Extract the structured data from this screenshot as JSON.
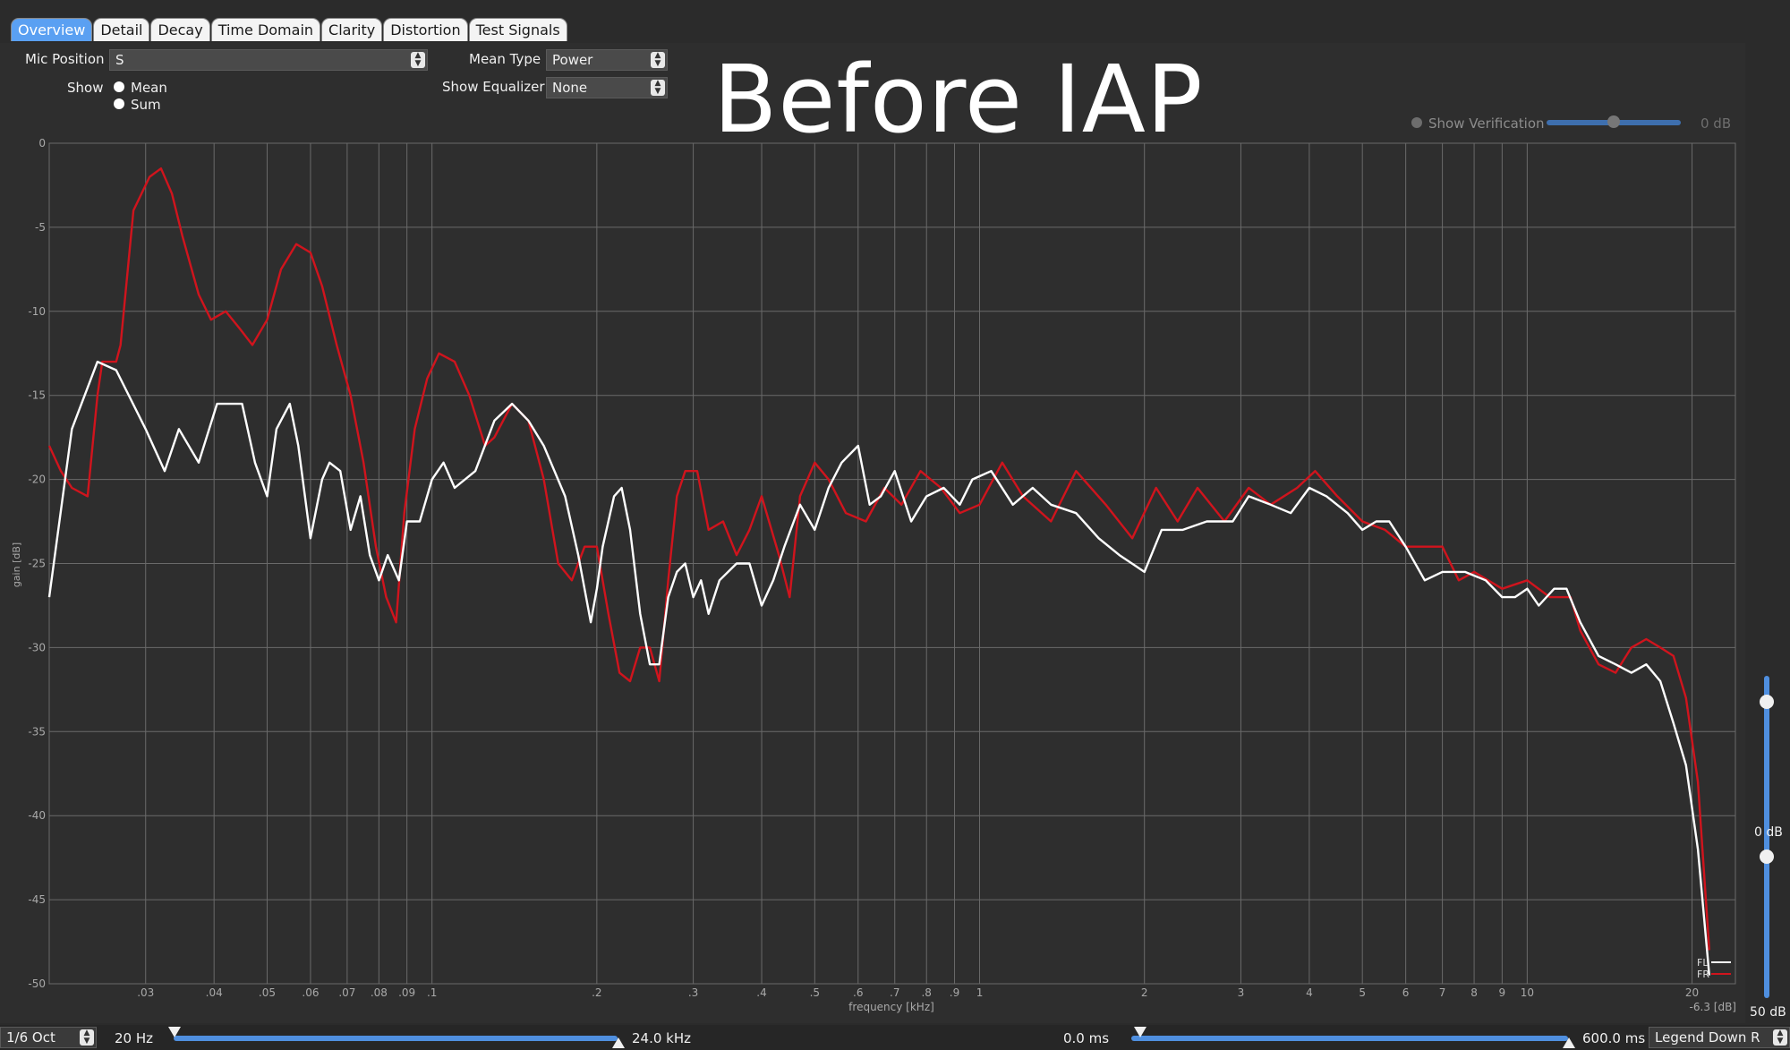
{
  "tabs": [
    {
      "label": "Overview",
      "active": true
    },
    {
      "label": "Detail"
    },
    {
      "label": "Decay"
    },
    {
      "label": "Time Domain"
    },
    {
      "label": "Clarity"
    },
    {
      "label": "Distortion"
    },
    {
      "label": "Test Signals"
    }
  ],
  "controls": {
    "mic_position_label": "Mic Position",
    "mic_position_value": "S",
    "show_label": "Show",
    "show_options": [
      "Mean",
      "Sum"
    ],
    "mean_type_label": "Mean Type",
    "mean_type_value": "Power",
    "show_equalizer_label": "Show Equalizer",
    "show_equalizer_value": "None",
    "show_verification_label": "Show Verification",
    "verification_value": "0 dB"
  },
  "overlay_title": "Before IAP",
  "bottom_bar": {
    "smoothing": "1/6 Oct",
    "freq_min": "20 Hz",
    "freq_max": "24.0 kHz",
    "time_min": "0.0 ms",
    "time_max": "600.0 ms",
    "legend": "Legend Down R"
  },
  "side": {
    "top_db": "0 dB",
    "bottom_db": "50 dB"
  },
  "colors": {
    "accent": "#4f8fdf",
    "series_fl": "#ffffff",
    "series_fr": "#d0141d",
    "grid": "#6a6a6a"
  },
  "chart_data": {
    "type": "line",
    "xlabel": "frequency [kHz]",
    "ylabel": "gain [dB]",
    "xscale": "log",
    "xlim": [
      0.02,
      24
    ],
    "ylim": [
      -50,
      0
    ],
    "y_ticks": [
      0,
      -5,
      -10,
      -15,
      -20,
      -25,
      -30,
      -35,
      -40,
      -45,
      -50
    ],
    "x_ticks": [
      {
        "v": 0.03,
        "l": ".03"
      },
      {
        "v": 0.04,
        "l": ".04"
      },
      {
        "v": 0.05,
        "l": ".05"
      },
      {
        "v": 0.06,
        "l": ".06"
      },
      {
        "v": 0.07,
        "l": ".07"
      },
      {
        "v": 0.08,
        "l": ".08"
      },
      {
        "v": 0.09,
        "l": ".09"
      },
      {
        "v": 0.1,
        "l": ".1"
      },
      {
        "v": 0.2,
        "l": ".2"
      },
      {
        "v": 0.3,
        "l": ".3"
      },
      {
        "v": 0.4,
        "l": ".4"
      },
      {
        "v": 0.5,
        "l": ".5"
      },
      {
        "v": 0.6,
        "l": ".6"
      },
      {
        "v": 0.7,
        "l": ".7"
      },
      {
        "v": 0.8,
        "l": ".8"
      },
      {
        "v": 0.9,
        "l": ".9"
      },
      {
        "v": 1,
        "l": "1"
      },
      {
        "v": 2,
        "l": "2"
      },
      {
        "v": 3,
        "l": "3"
      },
      {
        "v": 4,
        "l": "4"
      },
      {
        "v": 5,
        "l": "5"
      },
      {
        "v": 6,
        "l": "6"
      },
      {
        "v": 7,
        "l": "7"
      },
      {
        "v": 8,
        "l": "8"
      },
      {
        "v": 9,
        "l": "9"
      },
      {
        "v": 10,
        "l": "10"
      },
      {
        "v": 20,
        "l": "20"
      }
    ],
    "corner_readout": "-6.3 [dB]",
    "legend_position": "bottom-right",
    "series": [
      {
        "name": "FL",
        "color": "#ffffff",
        "points": [
          [
            0.02,
            -27
          ],
          [
            0.022,
            -17
          ],
          [
            0.0245,
            -13
          ],
          [
            0.0265,
            -13.5
          ],
          [
            0.03,
            -17
          ],
          [
            0.0325,
            -19.5
          ],
          [
            0.0345,
            -17
          ],
          [
            0.0375,
            -19
          ],
          [
            0.0405,
            -15.5
          ],
          [
            0.045,
            -15.5
          ],
          [
            0.0475,
            -19
          ],
          [
            0.05,
            -21
          ],
          [
            0.052,
            -17
          ],
          [
            0.055,
            -15.5
          ],
          [
            0.057,
            -18
          ],
          [
            0.06,
            -23.5
          ],
          [
            0.063,
            -20
          ],
          [
            0.065,
            -19
          ],
          [
            0.068,
            -19.5
          ],
          [
            0.071,
            -23
          ],
          [
            0.074,
            -21
          ],
          [
            0.077,
            -24.5
          ],
          [
            0.08,
            -26
          ],
          [
            0.083,
            -24.5
          ],
          [
            0.087,
            -26
          ],
          [
            0.09,
            -22.5
          ],
          [
            0.095,
            -22.5
          ],
          [
            0.1,
            -20
          ],
          [
            0.105,
            -19
          ],
          [
            0.11,
            -20.5
          ],
          [
            0.12,
            -19.5
          ],
          [
            0.13,
            -16.5
          ],
          [
            0.14,
            -15.5
          ],
          [
            0.15,
            -16.5
          ],
          [
            0.16,
            -18
          ],
          [
            0.175,
            -21
          ],
          [
            0.185,
            -24.5
          ],
          [
            0.195,
            -28.5
          ],
          [
            0.2,
            -26.5
          ],
          [
            0.205,
            -24
          ],
          [
            0.215,
            -21
          ],
          [
            0.222,
            -20.5
          ],
          [
            0.23,
            -23
          ],
          [
            0.24,
            -28
          ],
          [
            0.25,
            -31
          ],
          [
            0.26,
            -31
          ],
          [
            0.27,
            -27
          ],
          [
            0.28,
            -25.5
          ],
          [
            0.29,
            -25
          ],
          [
            0.3,
            -27
          ],
          [
            0.31,
            -26
          ],
          [
            0.32,
            -28
          ],
          [
            0.335,
            -26
          ],
          [
            0.36,
            -25
          ],
          [
            0.38,
            -25
          ],
          [
            0.4,
            -27.5
          ],
          [
            0.42,
            -26
          ],
          [
            0.44,
            -24
          ],
          [
            0.47,
            -21.5
          ],
          [
            0.5,
            -23
          ],
          [
            0.53,
            -20.5
          ],
          [
            0.56,
            -19
          ],
          [
            0.6,
            -18
          ],
          [
            0.63,
            -21.5
          ],
          [
            0.66,
            -21
          ],
          [
            0.7,
            -19.5
          ],
          [
            0.75,
            -22.5
          ],
          [
            0.8,
            -21
          ],
          [
            0.86,
            -20.5
          ],
          [
            0.92,
            -21.5
          ],
          [
            0.97,
            -20
          ],
          [
            1.05,
            -19.5
          ],
          [
            1.15,
            -21.5
          ],
          [
            1.25,
            -20.5
          ],
          [
            1.35,
            -21.5
          ],
          [
            1.5,
            -22
          ],
          [
            1.65,
            -23.5
          ],
          [
            1.8,
            -24.5
          ],
          [
            2.0,
            -25.5
          ],
          [
            2.15,
            -23
          ],
          [
            2.35,
            -23
          ],
          [
            2.6,
            -22.5
          ],
          [
            2.9,
            -22.5
          ],
          [
            3.1,
            -21
          ],
          [
            3.4,
            -21.5
          ],
          [
            3.7,
            -22
          ],
          [
            4.0,
            -20.5
          ],
          [
            4.3,
            -21
          ],
          [
            4.7,
            -22
          ],
          [
            5.0,
            -23
          ],
          [
            5.3,
            -22.5
          ],
          [
            5.6,
            -22.5
          ],
          [
            6.0,
            -24
          ],
          [
            6.5,
            -26
          ],
          [
            7.0,
            -25.5
          ],
          [
            7.7,
            -25.5
          ],
          [
            8.4,
            -26
          ],
          [
            9.0,
            -27
          ],
          [
            9.5,
            -27
          ],
          [
            10,
            -26.5
          ],
          [
            10.5,
            -27.5
          ],
          [
            11.2,
            -26.5
          ],
          [
            11.8,
            -26.5
          ],
          [
            12.5,
            -28.5
          ],
          [
            13.5,
            -30.5
          ],
          [
            14.5,
            -31
          ],
          [
            15.5,
            -31.5
          ],
          [
            16.5,
            -31
          ],
          [
            17.5,
            -32
          ],
          [
            18.5,
            -34.5
          ],
          [
            19.5,
            -37
          ],
          [
            20.5,
            -42
          ],
          [
            21.5,
            -49.5
          ]
        ]
      },
      {
        "name": "FR",
        "color": "#d0141d",
        "points": [
          [
            0.02,
            -18
          ],
          [
            0.021,
            -19.5
          ],
          [
            0.022,
            -20.5
          ],
          [
            0.0235,
            -21
          ],
          [
            0.0245,
            -15
          ],
          [
            0.025,
            -13
          ],
          [
            0.0265,
            -13
          ],
          [
            0.027,
            -12
          ],
          [
            0.0285,
            -4
          ],
          [
            0.0305,
            -2
          ],
          [
            0.032,
            -1.5
          ],
          [
            0.0335,
            -3
          ],
          [
            0.035,
            -5.5
          ],
          [
            0.0375,
            -9
          ],
          [
            0.0395,
            -10.5
          ],
          [
            0.042,
            -10
          ],
          [
            0.0445,
            -11
          ],
          [
            0.047,
            -12
          ],
          [
            0.05,
            -10.5
          ],
          [
            0.053,
            -7.5
          ],
          [
            0.0565,
            -6
          ],
          [
            0.06,
            -6.5
          ],
          [
            0.063,
            -8.5
          ],
          [
            0.067,
            -12
          ],
          [
            0.071,
            -15
          ],
          [
            0.075,
            -19
          ],
          [
            0.079,
            -24
          ],
          [
            0.0825,
            -27
          ],
          [
            0.086,
            -28.5
          ],
          [
            0.089,
            -22
          ],
          [
            0.093,
            -17
          ],
          [
            0.098,
            -14
          ],
          [
            0.103,
            -12.5
          ],
          [
            0.11,
            -13
          ],
          [
            0.117,
            -15
          ],
          [
            0.125,
            -18
          ],
          [
            0.13,
            -17.5
          ],
          [
            0.14,
            -15.5
          ],
          [
            0.15,
            -16.5
          ],
          [
            0.16,
            -20
          ],
          [
            0.17,
            -25
          ],
          [
            0.18,
            -26
          ],
          [
            0.19,
            -24
          ],
          [
            0.2,
            -24
          ],
          [
            0.21,
            -28
          ],
          [
            0.22,
            -31.5
          ],
          [
            0.23,
            -32
          ],
          [
            0.24,
            -30
          ],
          [
            0.25,
            -30
          ],
          [
            0.26,
            -32
          ],
          [
            0.27,
            -26
          ],
          [
            0.28,
            -21
          ],
          [
            0.29,
            -19.5
          ],
          [
            0.305,
            -19.5
          ],
          [
            0.32,
            -23
          ],
          [
            0.34,
            -22.5
          ],
          [
            0.36,
            -24.5
          ],
          [
            0.38,
            -23
          ],
          [
            0.4,
            -21
          ],
          [
            0.43,
            -24.5
          ],
          [
            0.45,
            -27
          ],
          [
            0.47,
            -21
          ],
          [
            0.5,
            -19
          ],
          [
            0.53,
            -20
          ],
          [
            0.57,
            -22
          ],
          [
            0.62,
            -22.5
          ],
          [
            0.67,
            -20.5
          ],
          [
            0.72,
            -21.5
          ],
          [
            0.78,
            -19.5
          ],
          [
            0.85,
            -20.5
          ],
          [
            0.92,
            -22
          ],
          [
            1.0,
            -21.5
          ],
          [
            1.1,
            -19
          ],
          [
            1.2,
            -21
          ],
          [
            1.35,
            -22.5
          ],
          [
            1.5,
            -19.5
          ],
          [
            1.7,
            -21.5
          ],
          [
            1.9,
            -23.5
          ],
          [
            2.1,
            -20.5
          ],
          [
            2.3,
            -22.5
          ],
          [
            2.5,
            -20.5
          ],
          [
            2.8,
            -22.5
          ],
          [
            3.1,
            -20.5
          ],
          [
            3.4,
            -21.5
          ],
          [
            3.8,
            -20.5
          ],
          [
            4.1,
            -19.5
          ],
          [
            4.5,
            -21
          ],
          [
            5.0,
            -22.5
          ],
          [
            5.5,
            -23
          ],
          [
            6.0,
            -24
          ],
          [
            6.5,
            -24
          ],
          [
            7.0,
            -24
          ],
          [
            7.5,
            -26
          ],
          [
            8.0,
            -25.5
          ],
          [
            9.0,
            -26.5
          ],
          [
            10,
            -26
          ],
          [
            11,
            -27
          ],
          [
            12,
            -27
          ],
          [
            12.5,
            -29
          ],
          [
            13.5,
            -31
          ],
          [
            14.5,
            -31.5
          ],
          [
            15.5,
            -30
          ],
          [
            16.5,
            -29.5
          ],
          [
            17.5,
            -30
          ],
          [
            18.5,
            -30.5
          ],
          [
            19.5,
            -33
          ],
          [
            20.5,
            -38
          ],
          [
            21.5,
            -48
          ]
        ]
      }
    ]
  }
}
